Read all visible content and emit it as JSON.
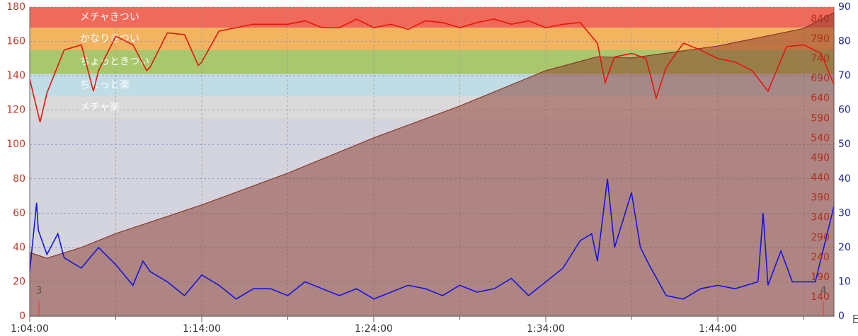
{
  "chart_data": {
    "type": "line",
    "xlim": [
      3840,
      6645
    ],
    "xticks": [
      {
        "value": 3840,
        "label": "1:04:00"
      },
      {
        "value": 4440,
        "label": "1:14:00"
      },
      {
        "value": 5040,
        "label": "1:24:00"
      },
      {
        "value": 5640,
        "label": "1:34:00"
      },
      {
        "value": 6240,
        "label": "1:44:00"
      }
    ],
    "xminorticks": [
      4140,
      4740,
      5340,
      5940,
      6540
    ],
    "ylim": [
      0,
      180
    ],
    "yticks": [
      0,
      20,
      40,
      60,
      80,
      100,
      120,
      140,
      160,
      180
    ],
    "y2lim": [
      0,
      90
    ],
    "y2ticks": [
      0,
      10,
      20,
      30,
      40,
      50,
      60,
      70,
      80,
      90
    ],
    "y2_unit": "日",
    "y3lim": [
      92,
      870
    ],
    "y3ticks": [
      140,
      190,
      240,
      290,
      340,
      390,
      440,
      490,
      540,
      590,
      640,
      690,
      740,
      790,
      840
    ],
    "grid": true,
    "background": "#d4d4de",
    "zones": [
      {
        "label": "メチャきつい",
        "from": 168,
        "to": 180,
        "color": "#ef6a5a"
      },
      {
        "label": "かなりきつい",
        "from": 155,
        "to": 168,
        "color": "#f2b45f"
      },
      {
        "label": "ちょっときつい",
        "from": 141,
        "to": 155,
        "color": "#a9c76c"
      },
      {
        "label": "ちょっと楽",
        "from": 128,
        "to": 141,
        "color": "#c0dde6"
      },
      {
        "label": "メチャ楽",
        "from": 115,
        "to": 128,
        "color": "#dadada"
      }
    ],
    "markers": [
      {
        "x": 3872,
        "label": "3"
      },
      {
        "x": 6608,
        "label": "4"
      }
    ],
    "series": [
      {
        "type": "area",
        "axis": "y3",
        "color": "#8a3628",
        "x": [
          3840,
          3900,
          4020,
          4140,
          4440,
          4740,
          5040,
          5340,
          5640,
          5820,
          5940,
          6240,
          6540,
          6645
        ],
        "values": [
          252,
          238,
          265,
          300,
          372,
          452,
          541,
          621,
          710,
          745,
          742,
          772,
          816,
          856
        ]
      },
      {
        "type": "line",
        "axis": "y",
        "color": "#e8140c",
        "x": [
          3840,
          3876,
          3900,
          3960,
          4020,
          4062,
          4080,
          4140,
          4200,
          4248,
          4260,
          4320,
          4380,
          4428,
          4440,
          4500,
          4560,
          4620,
          4680,
          4740,
          4800,
          4860,
          4920,
          4980,
          5040,
          5100,
          5160,
          5220,
          5280,
          5340,
          5400,
          5460,
          5520,
          5580,
          5640,
          5700,
          5760,
          5820,
          5847,
          5880,
          5940,
          5990,
          6025,
          6060,
          6120,
          6180,
          6240,
          6300,
          6360,
          6415,
          6450,
          6480,
          6540,
          6600,
          6645
        ],
        "values": [
          138,
          113,
          130,
          155,
          158,
          131,
          143,
          163,
          158,
          143,
          145,
          165,
          164,
          146,
          148,
          166,
          168,
          170,
          170,
          170,
          172,
          168,
          168,
          173,
          168,
          170,
          167,
          172,
          171,
          168,
          171,
          173,
          170,
          172,
          168,
          170,
          171,
          159,
          136,
          151,
          153,
          150,
          127,
          145,
          159,
          155,
          150,
          148,
          143,
          131,
          145,
          157,
          158,
          153,
          135
        ]
      },
      {
        "type": "line",
        "axis": "y2",
        "color": "#1414e6",
        "x": [
          3840,
          3864,
          3870,
          3900,
          3938,
          3960,
          4020,
          4080,
          4140,
          4200,
          4235,
          4260,
          4320,
          4380,
          4440,
          4500,
          4560,
          4620,
          4680,
          4740,
          4800,
          4860,
          4920,
          4980,
          5040,
          5100,
          5160,
          5220,
          5280,
          5340,
          5400,
          5460,
          5520,
          5580,
          5640,
          5700,
          5760,
          5800,
          5820,
          5855,
          5880,
          5939,
          5970,
          6000,
          6060,
          6120,
          6180,
          6240,
          6300,
          6380,
          6398,
          6415,
          6460,
          6500,
          6580,
          6645
        ],
        "values": [
          13,
          33,
          25,
          18,
          24,
          17,
          14,
          20,
          15,
          9,
          16,
          13,
          10,
          6,
          12,
          9,
          5,
          8,
          8,
          6,
          10,
          8,
          6,
          8,
          5,
          7,
          9,
          8,
          6,
          9,
          7,
          8,
          11,
          6,
          10,
          14,
          22,
          24,
          16,
          40,
          20,
          36,
          20,
          15,
          6,
          5,
          8,
          9,
          8,
          10,
          30,
          9,
          19,
          10,
          10,
          32
        ]
      }
    ]
  }
}
